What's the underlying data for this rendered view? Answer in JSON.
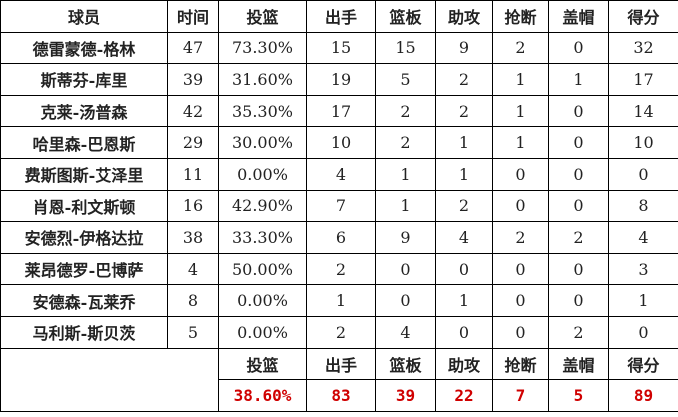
{
  "headers": [
    "球员",
    "时间",
    "投篮",
    "出手",
    "篮板",
    "助攻",
    "抢断",
    "盖帽",
    "得分"
  ],
  "rows": [
    [
      "德雷蒙德-格林",
      "47",
      "73.30%",
      "15",
      "15",
      "9",
      "2",
      "0",
      "32"
    ],
    [
      "斯蒂芬-库里",
      "39",
      "31.60%",
      "19",
      "5",
      "2",
      "1",
      "1",
      "17"
    ],
    [
      "克莱-汤普森",
      "42",
      "35.30%",
      "17",
      "2",
      "2",
      "1",
      "0",
      "14"
    ],
    [
      "哈里森-巴恩斯",
      "29",
      "30.00%",
      "10",
      "2",
      "1",
      "1",
      "0",
      "10"
    ],
    [
      "费斯图斯-艾泽里",
      "11",
      "0.00%",
      "4",
      "1",
      "1",
      "0",
      "0",
      "0"
    ],
    [
      "肖恩-利文斯顿",
      "16",
      "42.90%",
      "7",
      "1",
      "2",
      "0",
      "0",
      "8"
    ],
    [
      "安德烈-伊格达拉",
      "38",
      "33.30%",
      "6",
      "9",
      "4",
      "2",
      "2",
      "4"
    ],
    [
      "莱昂德罗-巴博萨",
      "4",
      "50.00%",
      "2",
      "0",
      "0",
      "0",
      "0",
      "3"
    ],
    [
      "安德森-瓦莱乔",
      "8",
      "0.00%",
      "1",
      "0",
      "1",
      "0",
      "0",
      "1"
    ],
    [
      "马利斯-斯贝茨",
      "5",
      "0.00%",
      "2",
      "4",
      "0",
      "0",
      "2",
      "0"
    ]
  ],
  "totals_headers": [
    "投篮",
    "出手",
    "篮板",
    "助攻",
    "抢断",
    "盖帽",
    "得分"
  ],
  "totals": [
    "38.60%",
    "83",
    "39",
    "22",
    "7",
    "5",
    "89"
  ],
  "colors": {
    "totals_text": "#d00000"
  }
}
